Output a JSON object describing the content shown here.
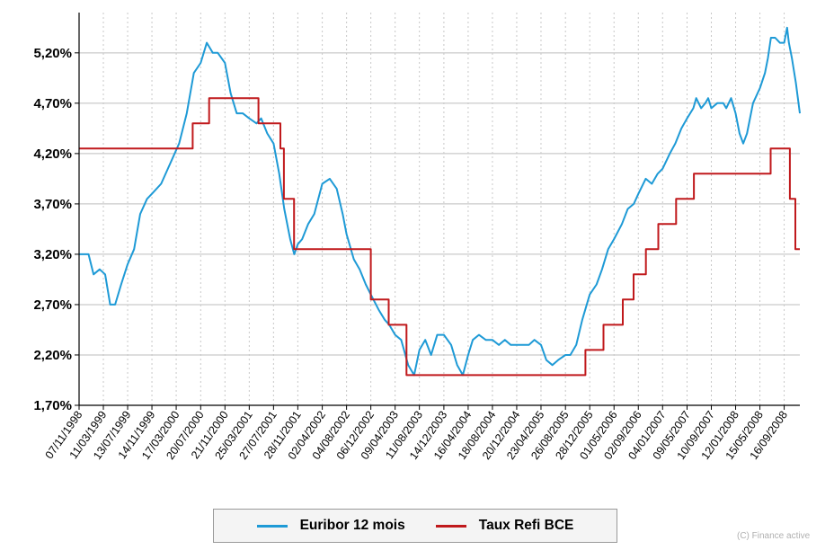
{
  "chart_data": {
    "type": "line",
    "ylim": [
      1.7,
      5.6
    ],
    "y_ticks": [
      "1,70%",
      "2,20%",
      "2,70%",
      "3,20%",
      "3,70%",
      "4,20%",
      "4,70%",
      "5,20%"
    ],
    "y_tick_values": [
      1.7,
      2.2,
      2.7,
      3.2,
      3.7,
      4.2,
      4.7,
      5.2
    ],
    "xlim": [
      "1998-11-07",
      "2008-12-05"
    ],
    "x_ticks": [
      "07/11/1998",
      "11/03/1999",
      "13/07/1999",
      "14/11/1999",
      "17/03/2000",
      "20/07/2000",
      "21/11/2000",
      "25/03/2001",
      "27/07/2001",
      "28/11/2001",
      "02/04/2002",
      "04/08/2002",
      "06/12/2002",
      "09/04/2003",
      "11/08/2003",
      "14/12/2003",
      "16/04/2004",
      "18/08/2004",
      "20/12/2004",
      "23/04/2005",
      "26/08/2005",
      "28/12/2005",
      "01/05/2006",
      "02/09/2006",
      "04/01/2007",
      "09/05/2007",
      "10/09/2007",
      "12/01/2008",
      "15/05/2008",
      "16/09/2008"
    ],
    "x_tick_dates": [
      "1998-11-07",
      "1999-03-11",
      "1999-07-13",
      "1999-11-14",
      "2000-03-17",
      "2000-07-20",
      "2000-11-21",
      "2001-03-25",
      "2001-07-27",
      "2001-11-28",
      "2002-04-02",
      "2002-08-04",
      "2002-12-06",
      "2003-04-09",
      "2003-08-11",
      "2003-12-14",
      "2004-04-16",
      "2004-08-18",
      "2004-12-20",
      "2005-04-23",
      "2005-08-26",
      "2005-12-28",
      "2006-05-01",
      "2006-09-02",
      "2007-01-04",
      "2007-05-09",
      "2007-09-10",
      "2008-01-12",
      "2008-05-15",
      "2008-09-16"
    ],
    "grid": true,
    "legend_position": "bottom",
    "series": [
      {
        "name": "Euribor 12 mois",
        "color": "#1e9ad6",
        "x": [
          "1998-11-07",
          "1998-12-25",
          "1999-01-20",
          "1999-02-20",
          "1999-03-20",
          "1999-04-15",
          "1999-05-10",
          "1999-06-10",
          "1999-07-13",
          "1999-08-15",
          "1999-09-15",
          "1999-10-20",
          "1999-11-14",
          "1999-12-31",
          "2000-02-15",
          "2000-04-01",
          "2000-05-10",
          "2000-06-15",
          "2000-07-20",
          "2000-08-20",
          "2000-09-20",
          "2000-10-15",
          "2000-11-21",
          "2000-12-20",
          "2001-01-20",
          "2001-02-20",
          "2001-03-25",
          "2001-05-01",
          "2001-05-25",
          "2001-06-25",
          "2001-07-27",
          "2001-08-25",
          "2001-09-20",
          "2001-10-20",
          "2001-11-10",
          "2001-11-28",
          "2001-12-20",
          "2002-01-20",
          "2002-02-20",
          "2002-04-02",
          "2002-05-10",
          "2002-06-15",
          "2002-07-15",
          "2002-08-04",
          "2002-09-10",
          "2002-10-10",
          "2002-11-10",
          "2002-12-06",
          "2003-01-15",
          "2003-02-15",
          "2003-03-10",
          "2003-04-09",
          "2003-05-10",
          "2003-06-15",
          "2003-07-15",
          "2003-08-11",
          "2003-09-10",
          "2003-10-10",
          "2003-11-10",
          "2003-12-14",
          "2004-01-20",
          "2004-02-20",
          "2004-03-20",
          "2004-04-16",
          "2004-05-10",
          "2004-06-10",
          "2004-07-15",
          "2004-08-18",
          "2004-09-20",
          "2004-10-20",
          "2004-11-20",
          "2004-12-20",
          "2005-01-20",
          "2005-02-20",
          "2005-03-20",
          "2005-04-23",
          "2005-05-20",
          "2005-06-20",
          "2005-07-20",
          "2005-08-26",
          "2005-09-20",
          "2005-10-20",
          "2005-11-20",
          "2005-12-28",
          "2006-02-01",
          "2006-03-01",
          "2006-04-01",
          "2006-05-01",
          "2006-06-10",
          "2006-07-10",
          "2006-08-10",
          "2006-09-02",
          "2006-10-10",
          "2006-11-10",
          "2006-12-10",
          "2007-01-04",
          "2007-02-10",
          "2007-03-10",
          "2007-04-10",
          "2007-05-09",
          "2007-06-10",
          "2007-06-25",
          "2007-07-20",
          "2007-08-10",
          "2007-08-25",
          "2007-09-10",
          "2007-10-10",
          "2007-11-10",
          "2007-11-25",
          "2007-12-20",
          "2008-01-12",
          "2008-02-01",
          "2008-02-20",
          "2008-03-10",
          "2008-04-10",
          "2008-05-15",
          "2008-06-10",
          "2008-06-25",
          "2008-07-10",
          "2008-08-01",
          "2008-08-25",
          "2008-09-16",
          "2008-10-01",
          "2008-10-10",
          "2008-10-25",
          "2008-11-15",
          "2008-12-05"
        ],
        "y": [
          3.2,
          3.2,
          3.0,
          3.05,
          3.0,
          2.7,
          2.7,
          2.9,
          3.1,
          3.25,
          3.6,
          3.75,
          3.8,
          3.9,
          4.1,
          4.3,
          4.6,
          5.0,
          5.1,
          5.3,
          5.2,
          5.2,
          5.1,
          4.8,
          4.6,
          4.6,
          4.55,
          4.5,
          4.55,
          4.4,
          4.3,
          4.0,
          3.65,
          3.35,
          3.2,
          3.3,
          3.35,
          3.5,
          3.6,
          3.9,
          3.95,
          3.85,
          3.6,
          3.4,
          3.15,
          3.05,
          2.9,
          2.8,
          2.65,
          2.55,
          2.5,
          2.4,
          2.35,
          2.1,
          2.0,
          2.25,
          2.35,
          2.2,
          2.4,
          2.4,
          2.3,
          2.1,
          2.0,
          2.2,
          2.35,
          2.4,
          2.35,
          2.35,
          2.3,
          2.35,
          2.3,
          2.3,
          2.3,
          2.3,
          2.35,
          2.3,
          2.15,
          2.1,
          2.15,
          2.2,
          2.2,
          2.3,
          2.55,
          2.8,
          2.9,
          3.05,
          3.25,
          3.35,
          3.5,
          3.65,
          3.7,
          3.8,
          3.95,
          3.9,
          4.0,
          4.05,
          4.2,
          4.3,
          4.45,
          4.55,
          4.65,
          4.75,
          4.65,
          4.7,
          4.75,
          4.65,
          4.7,
          4.7,
          4.65,
          4.75,
          4.6,
          4.4,
          4.3,
          4.4,
          4.7,
          4.85,
          5.0,
          5.15,
          5.35,
          5.35,
          5.3,
          5.3,
          5.45,
          5.3,
          5.15,
          4.9,
          4.6
        ]
      },
      {
        "name": "Taux Refi BCE",
        "color": "#c0191c",
        "x": [
          "1998-11-07",
          "1999-04-09",
          "1999-11-05",
          "2000-02-04",
          "2000-03-17",
          "2000-04-28",
          "2000-06-09",
          "2000-09-01",
          "2000-10-06",
          "2001-05-11",
          "2001-08-31",
          "2001-09-18",
          "2001-11-09",
          "2002-12-06",
          "2003-03-07",
          "2003-06-06",
          "2005-12-06",
          "2006-03-08",
          "2006-06-15",
          "2006-08-09",
          "2006-10-11",
          "2006-12-13",
          "2007-03-14",
          "2007-06-13",
          "2008-07-09",
          "2008-10-15",
          "2008-11-12",
          "2008-12-05"
        ],
        "y": [
          4.25,
          4.25,
          4.25,
          4.25,
          4.25,
          4.25,
          4.5,
          4.75,
          4.75,
          4.5,
          4.25,
          3.75,
          3.25,
          2.75,
          2.5,
          2.0,
          2.25,
          2.5,
          2.75,
          3.0,
          3.25,
          3.5,
          3.75,
          4.0,
          4.25,
          3.75,
          3.25,
          3.25
        ]
      }
    ]
  },
  "credit": "(C) Finance active"
}
